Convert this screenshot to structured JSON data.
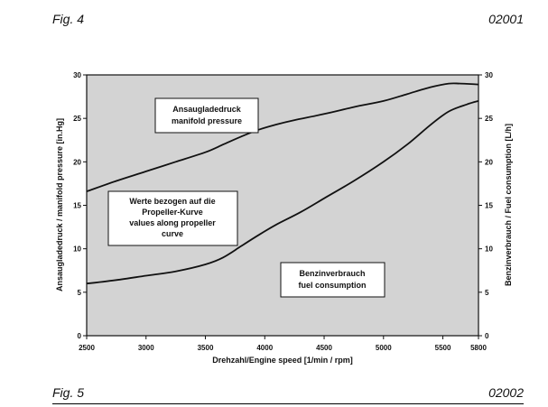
{
  "header": {
    "fig_top": "Fig. 4",
    "code_top": "02001"
  },
  "footer": {
    "fig_bottom": "Fig. 5",
    "code_bottom": "02002"
  },
  "colors": {
    "plot_bg": "#d3d3d3",
    "line": "#111111",
    "box_bg": "#ffffff"
  },
  "chart_data": {
    "type": "line",
    "title": "",
    "xlabel": "Drehzahl/Engine speed [1/min / rpm]",
    "ylabel": "Ansaugladedruck / manifold pressure [in.Hg]",
    "ylabel_right": "Benzinverbrauch / Fuel consumption [L/h]",
    "xlim": [
      2500,
      5800
    ],
    "ylim": [
      0,
      30
    ],
    "ylim_right": [
      0,
      30
    ],
    "x_ticks": [
      "2500",
      "3000",
      "3500",
      "4000",
      "4500",
      "5000",
      "5500",
      "5800"
    ],
    "x_tick_values": [
      2500,
      3000,
      3500,
      4000,
      4500,
      5000,
      5500,
      5800
    ],
    "y_ticks": [
      "0",
      "5",
      "10",
      "15",
      "20",
      "25",
      "30"
    ],
    "y_tick_values": [
      0,
      5,
      10,
      15,
      20,
      25,
      30
    ],
    "grid": false,
    "series": [
      {
        "x": [
          2500,
          2750,
          3000,
          3250,
          3500,
          3650,
          3800,
          3950,
          4100,
          4250,
          4500,
          4750,
          5000,
          5200,
          5400,
          5550,
          5650,
          5800
        ],
        "values": [
          16.6,
          17.8,
          18.9,
          20.0,
          21.1,
          22.0,
          22.9,
          23.7,
          24.3,
          24.8,
          25.5,
          26.3,
          27.0,
          27.8,
          28.6,
          29.0,
          29.0,
          28.9
        ]
      },
      {
        "x": [
          2500,
          2750,
          3000,
          3250,
          3500,
          3650,
          3800,
          3950,
          4100,
          4300,
          4500,
          4750,
          5000,
          5200,
          5400,
          5550,
          5700,
          5800
        ],
        "values": [
          6.0,
          6.4,
          6.9,
          7.4,
          8.2,
          9.0,
          10.3,
          11.6,
          12.8,
          14.2,
          15.8,
          17.8,
          20.0,
          22.0,
          24.3,
          25.8,
          26.6,
          27.0
        ]
      }
    ],
    "annotations": [
      {
        "lines": [
          "Ansaugladedruck",
          "manifold pressure"
        ]
      },
      {
        "lines": [
          "Werte bezogen auf die",
          "Propeller-Kurve",
          "values along propeller",
          "curve"
        ]
      },
      {
        "lines": [
          "Benzinverbrauch",
          "fuel consumption"
        ]
      }
    ]
  }
}
